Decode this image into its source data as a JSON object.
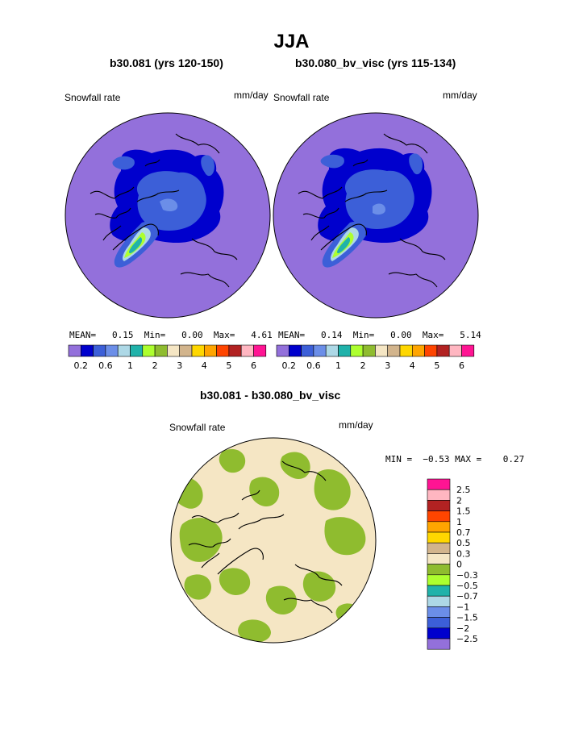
{
  "page": {
    "title": "JJA"
  },
  "panels": [
    {
      "id": "left",
      "subtitle": "b30.081 (yrs 120-150)",
      "variable": "Snowfall rate",
      "units": "mm/day",
      "stats": {
        "mean_label": "MEAN=",
        "mean": "0.15",
        "min_label": "Min=",
        "min": "0.00",
        "max_label": "Max=",
        "max": "4.61"
      }
    },
    {
      "id": "right",
      "subtitle": "b30.080_bv_visc (yrs 115-134)",
      "variable": "Snowfall rate",
      "units": "mm/day",
      "stats": {
        "mean_label": "MEAN=",
        "mean": "0.14",
        "min_label": "Min=",
        "min": "0.00",
        "max_label": "Max=",
        "max": "5.14"
      }
    }
  ],
  "difference": {
    "subtitle": "b30.081 - b30.080_bv_visc",
    "variable": "Snowfall rate",
    "units": "mm/day",
    "stats": {
      "min_label": "MIN =",
      "min": "−0.53",
      "max_label": "MAX =",
      "max": "0.27"
    }
  },
  "colorbars": {
    "abs": {
      "colors": [
        "#9370db",
        "#0000cd",
        "#3c5fd8",
        "#6b8ee8",
        "#add8e6",
        "#20b2aa",
        "#adff2f",
        "#8fbc2f",
        "#f5e6c4",
        "#d2b48c",
        "#ffd700",
        "#ffa500",
        "#ff4500",
        "#b22222",
        "#ffb6c1",
        "#ff1493"
      ],
      "tick_labels": [
        "0.2",
        "0.6",
        "1",
        "2",
        "3",
        "4",
        "5",
        "6"
      ]
    },
    "diff": {
      "colors": [
        "#ff1493",
        "#ffb6c1",
        "#b22222",
        "#ff4500",
        "#ffa500",
        "#ffd700",
        "#d2b48c",
        "#f5e6c4",
        "#8fbc2f",
        "#adff2f",
        "#20b2aa",
        "#add8e6",
        "#6b8ee8",
        "#3c5fd8",
        "#0000cd",
        "#9370db"
      ],
      "tick_labels": [
        "2.5",
        "2",
        "1.5",
        "1",
        "0.7",
        "0.5",
        "0.3",
        "0",
        "−0.3",
        "−0.5",
        "−0.7",
        "−1",
        "−1.5",
        "−2",
        "−2.5"
      ]
    }
  },
  "chart_data": [
    {
      "type": "heatmap",
      "projection": "polar-stereographic",
      "title": "b30.081 (yrs 120-150)",
      "variable": "Snowfall rate",
      "units": "mm/day",
      "contour_levels": [
        0.2,
        0.4,
        0.6,
        0.8,
        1,
        1.5,
        2,
        2.5,
        3,
        3.5,
        4,
        4.5,
        5,
        5.5,
        6
      ],
      "mean": 0.15,
      "min": 0.0,
      "max": 4.61,
      "colors": {
        "background": "#9370db",
        "ocean_band": "#0000cd",
        "core": "#3c5fd8"
      }
    },
    {
      "type": "heatmap",
      "projection": "polar-stereographic",
      "title": "b30.080_bv_visc (yrs 115-134)",
      "variable": "Snowfall rate",
      "units": "mm/day",
      "contour_levels": [
        0.2,
        0.4,
        0.6,
        0.8,
        1,
        1.5,
        2,
        2.5,
        3,
        3.5,
        4,
        4.5,
        5,
        5.5,
        6
      ],
      "mean": 0.14,
      "min": 0.0,
      "max": 5.14,
      "colors": {
        "background": "#9370db",
        "ocean_band": "#0000cd",
        "core": "#3c5fd8"
      }
    },
    {
      "type": "heatmap",
      "projection": "polar-stereographic",
      "title": "b30.081 - b30.080_bv_visc",
      "variable": "Snowfall rate",
      "units": "mm/day",
      "contour_levels": [
        -2.5,
        -2,
        -1.5,
        -1,
        -0.7,
        -0.5,
        -0.3,
        0,
        0.3,
        0.5,
        0.7,
        1,
        1.5,
        2,
        2.5
      ],
      "min": -0.53,
      "max": 0.27,
      "colors": {
        "zero_band": "#f5e6c4",
        "negative_band": "#8fbc2f"
      }
    }
  ]
}
